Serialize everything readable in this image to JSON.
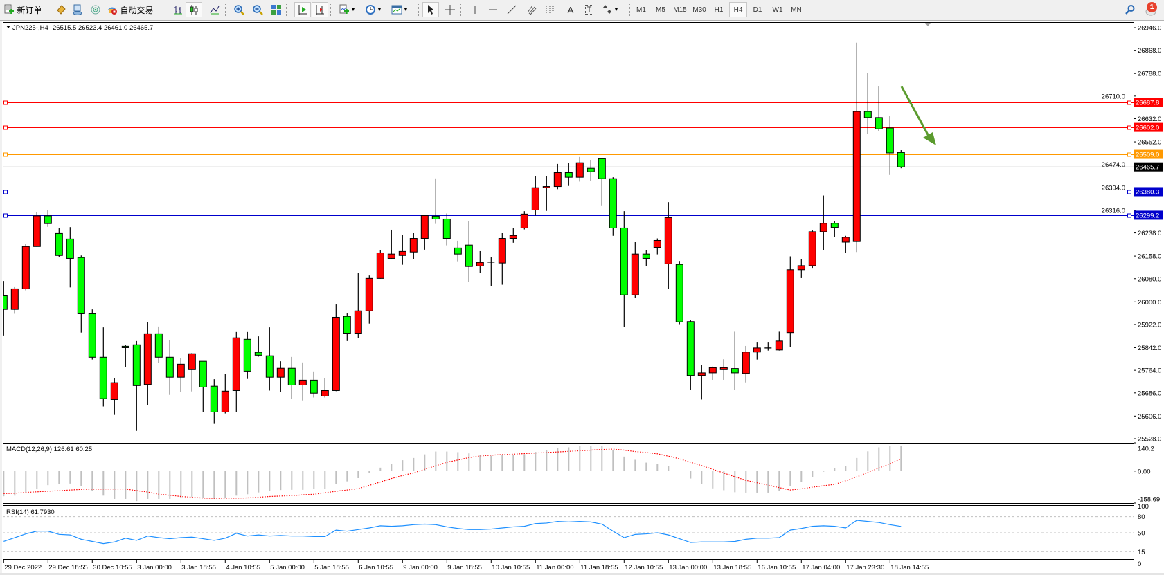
{
  "toolbar": {
    "items": [
      {
        "icon": "new-order-icon",
        "label": "新订单"
      },
      {
        "icon": "metaeditor-icon"
      },
      {
        "icon": "navigator-icon"
      },
      {
        "icon": "signals-icon"
      },
      {
        "icon": "autotrading-icon",
        "label": "自动交易"
      },
      {
        "sep": true
      },
      {
        "icon": "bar-chart-icon"
      },
      {
        "icon": "candlestick-chart-icon",
        "pressed": true
      },
      {
        "icon": "line-chart-icon"
      },
      {
        "sep": true
      },
      {
        "icon": "zoom-in-icon"
      },
      {
        "icon": "zoom-out-icon"
      },
      {
        "icon": "tile-windows-icon"
      },
      {
        "sep": true
      },
      {
        "icon": "auto-scroll-icon",
        "pressed": true
      },
      {
        "icon": "chart-shift-icon",
        "pressed": true
      },
      {
        "sep": true
      },
      {
        "icon": "indicators-icon",
        "dropdown": true
      },
      {
        "icon": "periods-clock-icon",
        "dropdown": true
      },
      {
        "icon": "templates-icon",
        "dropdown": true
      },
      {
        "sep": true
      },
      {
        "icon": "cursor-icon",
        "pressed": true
      },
      {
        "icon": "crosshair-icon"
      },
      {
        "sep": true
      },
      {
        "icon": "vertical-line-icon"
      },
      {
        "icon": "horizontal-line-icon"
      },
      {
        "icon": "trendline-icon"
      },
      {
        "icon": "fibonacci-channel-icon"
      },
      {
        "icon": "fibonacci-retracement-icon"
      },
      {
        "icon": "text-icon",
        "label": "A"
      },
      {
        "icon": "text-label-icon",
        "label": "T"
      },
      {
        "icon": "shapes-icon",
        "dropdown": true
      },
      {
        "sep": true
      }
    ],
    "timeframes": [
      "M1",
      "M5",
      "M15",
      "M30",
      "H1",
      "H4",
      "D1",
      "W1",
      "MN"
    ],
    "active_timeframe": "H4",
    "search_icon": "search-icon",
    "notification_icon": "chat-bubble-icon",
    "notification_count": "1"
  },
  "chart_header": {
    "symbol": "JPN225-,H4",
    "ohlc": "26515.5 26523.4 26461.0 26465.7"
  },
  "chart_data": {
    "type": "candlestick",
    "symbol": "JPN225-",
    "timeframe": "H4",
    "bull_color": "#ff0000",
    "bear_color": "#00ff00",
    "candles_ohlc": [
      [
        26021,
        26072,
        25884,
        25974
      ],
      [
        25974,
        26051,
        25959,
        26045
      ],
      [
        26045,
        26201,
        26040,
        26191
      ],
      [
        26191,
        26311,
        26190,
        26297
      ],
      [
        26297,
        26316,
        26259,
        26270
      ],
      [
        26236,
        26256,
        26154,
        26160
      ],
      [
        26217,
        26258,
        26050,
        26150
      ],
      [
        26153,
        26160,
        25894,
        25959
      ],
      [
        25959,
        25974,
        25801,
        25809
      ],
      [
        25809,
        25912,
        25639,
        25666
      ],
      [
        25663,
        25736,
        25610,
        25721
      ],
      [
        25847,
        25852,
        25775,
        25842
      ],
      [
        25852,
        25865,
        25555,
        25711
      ],
      [
        25715,
        25931,
        25643,
        25890
      ],
      [
        25890,
        25915,
        25789,
        25809
      ],
      [
        25809,
        25869,
        25679,
        25740
      ],
      [
        25740,
        25805,
        25689,
        25785
      ],
      [
        25766,
        25824,
        25691,
        25821
      ],
      [
        25795,
        25795,
        25620,
        25706
      ],
      [
        25709,
        25733,
        25579,
        25620
      ],
      [
        25620,
        25752,
        25615,
        25692
      ],
      [
        25694,
        25896,
        25620,
        25876
      ],
      [
        25871,
        25896,
        25734,
        25761
      ],
      [
        25826,
        25881,
        25811,
        25816
      ],
      [
        25814,
        25912,
        25694,
        25740
      ],
      [
        25740,
        25795,
        25689,
        25771
      ],
      [
        25771,
        25810,
        25665,
        25713
      ],
      [
        25713,
        25791,
        25660,
        25730
      ],
      [
        25730,
        25760,
        25670,
        25685
      ],
      [
        25675,
        25736,
        25670,
        25694
      ],
      [
        25694,
        25991,
        25692,
        25947
      ],
      [
        25950,
        25960,
        25865,
        25892
      ],
      [
        25892,
        26099,
        25875,
        25969
      ],
      [
        25969,
        26091,
        25925,
        26081
      ],
      [
        26081,
        26179,
        26080,
        26169
      ],
      [
        26150,
        26249,
        26149,
        26165
      ],
      [
        26160,
        26232,
        26128,
        26174
      ],
      [
        26172,
        26237,
        26147,
        26219
      ],
      [
        26219,
        26301,
        26180,
        26298
      ],
      [
        26296,
        26426,
        26269,
        26286
      ],
      [
        26286,
        26305,
        26195,
        26219
      ],
      [
        26186,
        26211,
        26140,
        26165
      ],
      [
        26196,
        26278,
        26068,
        26122
      ],
      [
        26124,
        26175,
        26099,
        26136
      ],
      [
        26137,
        26155,
        26054,
        26136
      ],
      [
        26134,
        26237,
        26059,
        26219
      ],
      [
        26219,
        26256,
        26204,
        26229
      ],
      [
        26255,
        26313,
        26250,
        26303
      ],
      [
        26317,
        26435,
        26298,
        26394
      ],
      [
        26394,
        26435,
        26314,
        26398
      ],
      [
        26398,
        26476,
        26389,
        26446
      ],
      [
        26446,
        26480,
        26400,
        26430
      ],
      [
        26430,
        26500,
        26415,
        26480
      ],
      [
        26461,
        26490,
        26417,
        26449
      ],
      [
        26494,
        26497,
        26333,
        26425
      ],
      [
        26425,
        26430,
        26228,
        26255
      ],
      [
        26255,
        26313,
        25913,
        26024
      ],
      [
        26024,
        26206,
        26013,
        26165
      ],
      [
        26165,
        26179,
        26123,
        26150
      ],
      [
        26188,
        26219,
        26164,
        26212
      ],
      [
        26131,
        26344,
        26044,
        26291
      ],
      [
        26129,
        26141,
        25923,
        25931
      ],
      [
        25932,
        25937,
        25696,
        25746
      ],
      [
        25746,
        25782,
        25663,
        25755
      ],
      [
        25755,
        25777,
        25731,
        25773
      ],
      [
        25766,
        25802,
        25731,
        25773
      ],
      [
        25770,
        25897,
        25696,
        25755
      ],
      [
        25753,
        25848,
        25722,
        25827
      ],
      [
        25827,
        25862,
        25801,
        25841
      ],
      [
        25841,
        25862,
        25832,
        25841
      ],
      [
        25834,
        25897,
        25832,
        25865
      ],
      [
        25894,
        26157,
        25843,
        26111
      ],
      [
        26111,
        26147,
        26082,
        26125
      ],
      [
        26125,
        26248,
        26115,
        26242
      ],
      [
        26242,
        26367,
        26179,
        26271
      ],
      [
        26271,
        26279,
        26225,
        26257
      ],
      [
        26206,
        26228,
        26170,
        26223
      ],
      [
        26208,
        26894,
        26172,
        26657
      ],
      [
        26657,
        26789,
        26580,
        26636
      ],
      [
        26636,
        26743,
        26589,
        26597
      ],
      [
        26600,
        26641,
        26438,
        26514
      ],
      [
        26515.5,
        26523.4,
        26461.0,
        26465.7
      ]
    ],
    "price_axis": {
      "range": [
        25528.0,
        26946.0
      ],
      "ticks": [
        "26946.0",
        "26868.0",
        "26788.0",
        "26710.0",
        "26632.0",
        "26552.0",
        "26474.0",
        "26394.0",
        "26316.0",
        "26238.0",
        "26158.0",
        "26080.0",
        "26000.0",
        "25922.0",
        "25842.0",
        "25764.0",
        "25686.0",
        "25606.0",
        "25528.0"
      ]
    },
    "levels": [
      {
        "price": 26687.8,
        "label": "26687.8",
        "color": "#ff0000",
        "text_color": "#ffffff"
      },
      {
        "price": 26602.0,
        "label": "26602.0",
        "color": "#ff0000",
        "text_color": "#ffffff"
      },
      {
        "price": 26509.0,
        "label": "26509.0",
        "color": "#ff9900",
        "text_color": "#ffffff"
      },
      {
        "price": 26380.3,
        "label": "26380.3",
        "color": "#0000cc",
        "text_color": "#ffffff"
      },
      {
        "price": 26299.2,
        "label": "26299.2",
        "color": "#0000cc",
        "text_color": "#ffffff"
      }
    ],
    "bid_line": {
      "price": 26465.7,
      "label": "26465.7",
      "color": "#c0c0c0",
      "label_bg": "#000000"
    },
    "arrow_color": "#5b9b2e",
    "time_axis": {
      "ticks": [
        {
          "bar": 0,
          "label": "29 Dec 2022"
        },
        {
          "bar": 4,
          "label": "29 Dec 18:55"
        },
        {
          "bar": 8,
          "label": "30 Dec 10:55"
        },
        {
          "bar": 12,
          "label": "3 Jan 00:00"
        },
        {
          "bar": 16,
          "label": "3 Jan 18:55"
        },
        {
          "bar": 20,
          "label": "4 Jan 10:55"
        },
        {
          "bar": 24,
          "label": "5 Jan 00:00"
        },
        {
          "bar": 28,
          "label": "5 Jan 18:55"
        },
        {
          "bar": 32,
          "label": "6 Jan 10:55"
        },
        {
          "bar": 36,
          "label": "9 Jan 00:00"
        },
        {
          "bar": 40,
          "label": "9 Jan 18:55"
        },
        {
          "bar": 44,
          "label": "10 Jan 10:55"
        },
        {
          "bar": 48,
          "label": "11 Jan 00:00"
        },
        {
          "bar": 52,
          "label": "11 Jan 18:55"
        },
        {
          "bar": 56,
          "label": "12 Jan 10:55"
        },
        {
          "bar": 60,
          "label": "13 Jan 00:00"
        },
        {
          "bar": 64,
          "label": "13 Jan 18:55"
        },
        {
          "bar": 68,
          "label": "16 Jan 10:55"
        },
        {
          "bar": 72,
          "label": "17 Jan 04:00"
        },
        {
          "bar": 76,
          "label": "17 Jan 23:30"
        },
        {
          "bar": 80,
          "label": "18 Jan 14:55"
        }
      ]
    },
    "macd": {
      "label": "MACD(12,26,9) 126.61 60.25",
      "range": [
        -158.69,
        140.2
      ],
      "axis_labels": [
        {
          "value": 140.2,
          "label": "140.2"
        },
        {
          "value": 0,
          "label": "0.00"
        },
        {
          "value": -158.69,
          "label": "-158.69"
        }
      ],
      "histogram_color": "#c0c0c0",
      "signal_color": "#ff0000",
      "histogram": [
        -125,
        -122,
        -106,
        -87,
        -70,
        -65,
        -62,
        -75,
        -97,
        -122,
        -138,
        -138,
        -149,
        -138,
        -138,
        -138,
        -135,
        -129,
        -132,
        -138,
        -135,
        -122,
        -115,
        -106,
        -100,
        -94,
        -93,
        -93,
        -89,
        -89,
        -65,
        -51,
        -35,
        -9,
        17,
        36,
        54,
        65,
        83,
        97,
        97,
        94,
        88,
        81,
        76,
        81,
        81,
        84,
        95,
        104,
        114,
        118,
        125,
        125,
        123,
        105,
        72,
        56,
        42,
        35,
        26,
        2,
        -37,
        -65,
        -86,
        -95,
        -105,
        -107,
        -107,
        -107,
        -100,
        -75,
        -54,
        -31,
        -3,
        15,
        26,
        65,
        98,
        118,
        125,
        126.61
      ],
      "signal": [
        -112,
        -110,
        -106,
        -103,
        -100,
        -97,
        -94,
        -91,
        -90,
        -89,
        -89,
        -89,
        -97,
        -104,
        -115,
        -120,
        -126,
        -130,
        -134,
        -135,
        -135,
        -134,
        -133,
        -130,
        -126,
        -124,
        -122,
        -118,
        -115,
        -108,
        -100,
        -94,
        -87,
        -71,
        -54,
        -37,
        -22,
        -9,
        9,
        26,
        44,
        55,
        67,
        75,
        79,
        82,
        84,
        87,
        90,
        92,
        95,
        98,
        101,
        104,
        107,
        109,
        104,
        97,
        92,
        86,
        74,
        61,
        44,
        27,
        9,
        -10,
        -28,
        -46,
        -58,
        -70,
        -82,
        -94,
        -88,
        -80,
        -73,
        -66,
        -48,
        -29,
        -7,
        15,
        37,
        60.25
      ]
    },
    "rsi": {
      "label": "RSI(14) 61.7930",
      "range": [
        0,
        100
      ],
      "levels": [
        80,
        50,
        15
      ],
      "axis_labels": [
        {
          "value": 100,
          "label": "100"
        },
        {
          "value": 80,
          "label": "80"
        },
        {
          "value": 50,
          "label": "50"
        },
        {
          "value": 15,
          "label": "15"
        },
        {
          "value": 0,
          "label": "0"
        }
      ],
      "color": "#1e90ff",
      "values": [
        34,
        41,
        48,
        53,
        53,
        47,
        46,
        38,
        34,
        30,
        33,
        40,
        36,
        44,
        41,
        39,
        41,
        42,
        39,
        36,
        40,
        49,
        44,
        46,
        44,
        45,
        44,
        44,
        43,
        43,
        55,
        53,
        56,
        59,
        63,
        62,
        63,
        65,
        66,
        65,
        61,
        58,
        56,
        56,
        57,
        59,
        61,
        62,
        67,
        68,
        71,
        70,
        71,
        70,
        66,
        53,
        41,
        47,
        48,
        50,
        46,
        39,
        32,
        33,
        33,
        33,
        34,
        38,
        40,
        40,
        41,
        55,
        58,
        62,
        63,
        62,
        59,
        73,
        71,
        69,
        65,
        61.793
      ]
    }
  }
}
